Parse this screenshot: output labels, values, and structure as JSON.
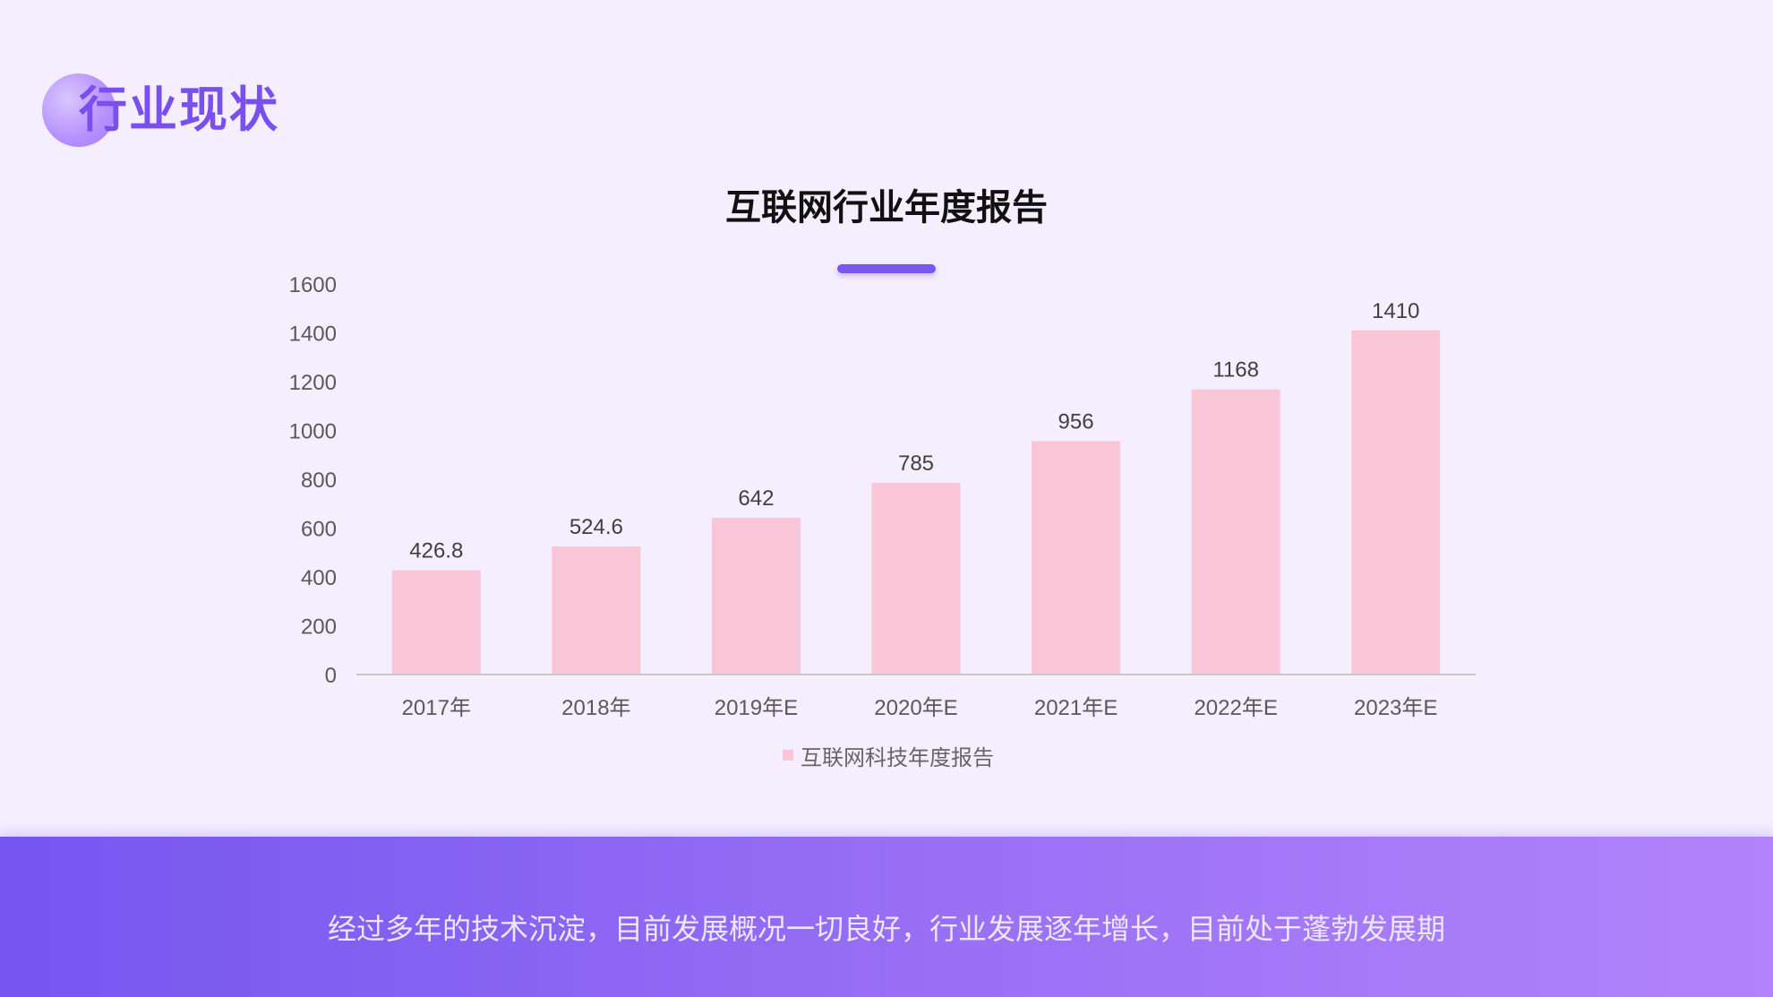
{
  "page": {
    "title": "行业现状",
    "footer_text": "经过多年的技术沉淀，目前发展概况一切良好，行业发展逐年增长，目前处于蓬勃发展期"
  },
  "colors": {
    "bar": "#f9c6d7",
    "accent": "#7a4ff0",
    "band_start": "#7556f0",
    "band_end": "#b283fb"
  },
  "chart_data": {
    "type": "bar",
    "title": "互联网行业年度报告",
    "categories": [
      "2017年",
      "2018年",
      "2019年E",
      "2020年E",
      "2021年E",
      "2022年E",
      "2023年E"
    ],
    "series": [
      {
        "name": "互联网科技年度报告",
        "values": [
          426.8,
          524.6,
          642,
          785,
          956,
          1168,
          1410
        ]
      }
    ],
    "ylim": [
      0,
      1600
    ],
    "yticks": [
      0,
      200,
      400,
      600,
      800,
      1000,
      1200,
      1400,
      1600
    ],
    "grid": false,
    "legend_position": "bottom-center",
    "data_labels": true
  }
}
